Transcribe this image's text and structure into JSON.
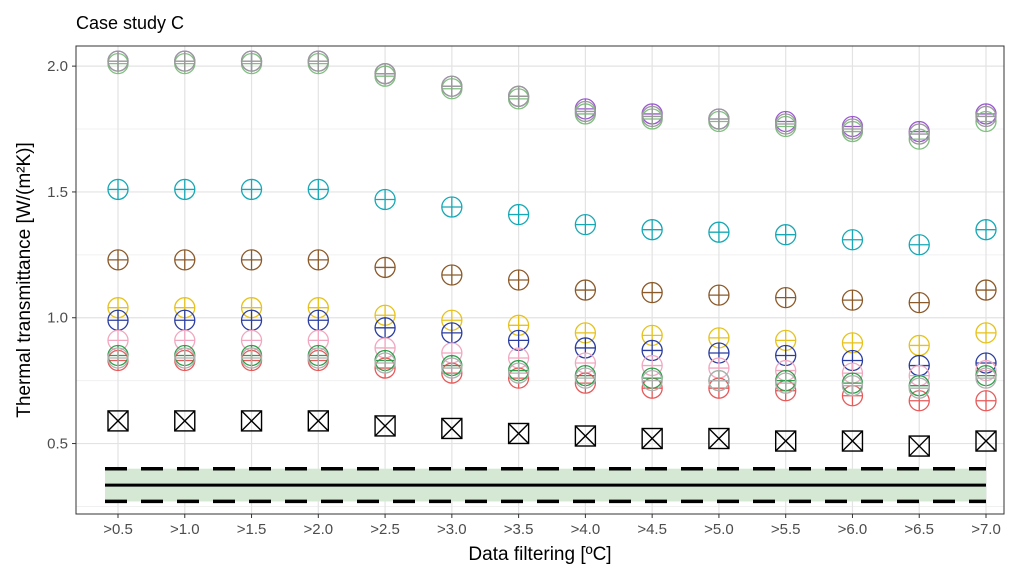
{
  "chart_data": {
    "type": "scatter",
    "title": "Case study C",
    "xlabel": "Data filtering [ºC]",
    "ylabel": "Thermal transmittance [W/(m²K)]",
    "categories": [
      ">0.5",
      ">1.0",
      ">1.5",
      ">2.0",
      ">2.5",
      ">3.0",
      ">3.5",
      ">4.0",
      ">4.5",
      ">5.0",
      ">5.5",
      ">6.0",
      ">6.5",
      ">7.0"
    ],
    "ylim": [
      0.22,
      2.08
    ],
    "yticks": [
      0.5,
      1.0,
      1.5,
      2.0
    ],
    "ytick_labels": [
      "0.5",
      "1.0",
      "1.5",
      "2.0"
    ],
    "grid": true,
    "legend": "none",
    "marker_style": "circle-plus",
    "series": [
      {
        "color": "#9b59d0",
        "values": [
          2.02,
          2.02,
          2.02,
          2.02,
          1.97,
          1.92,
          1.88,
          1.83,
          1.81,
          1.79,
          1.78,
          1.76,
          1.74,
          1.81
        ]
      },
      {
        "color": "#7fbf7f",
        "values": [
          2.01,
          2.01,
          2.01,
          2.01,
          1.96,
          1.91,
          1.87,
          1.81,
          1.79,
          1.78,
          1.76,
          1.74,
          1.71,
          1.78
        ]
      },
      {
        "color": "#9a9a9a",
        "values": [
          2.02,
          2.02,
          2.02,
          2.02,
          1.97,
          1.92,
          1.88,
          1.82,
          1.8,
          1.79,
          1.77,
          1.75,
          1.73,
          1.8
        ]
      },
      {
        "color": "#17a8b5",
        "values": [
          1.51,
          1.51,
          1.51,
          1.51,
          1.47,
          1.44,
          1.41,
          1.37,
          1.35,
          1.34,
          1.33,
          1.31,
          1.29,
          1.35
        ]
      },
      {
        "color": "#8b5a2b",
        "values": [
          1.23,
          1.23,
          1.23,
          1.23,
          1.2,
          1.17,
          1.15,
          1.11,
          1.1,
          1.09,
          1.08,
          1.07,
          1.06,
          1.11
        ]
      },
      {
        "color": "#e6c21a",
        "values": [
          1.04,
          1.04,
          1.04,
          1.04,
          1.01,
          0.99,
          0.97,
          0.94,
          0.93,
          0.92,
          0.91,
          0.9,
          0.89,
          0.94
        ]
      },
      {
        "color": "#2b3ea0",
        "values": [
          0.99,
          0.99,
          0.99,
          0.99,
          0.96,
          0.94,
          0.91,
          0.88,
          0.87,
          0.86,
          0.85,
          0.83,
          0.81,
          0.82
        ]
      },
      {
        "color": "#f0a8c0",
        "values": [
          0.91,
          0.91,
          0.91,
          0.91,
          0.88,
          0.86,
          0.84,
          0.82,
          0.81,
          0.8,
          0.79,
          0.78,
          0.77,
          0.79
        ]
      },
      {
        "color": "#e85a5a",
        "values": [
          0.83,
          0.83,
          0.83,
          0.83,
          0.8,
          0.78,
          0.76,
          0.74,
          0.72,
          0.72,
          0.71,
          0.69,
          0.67,
          0.67
        ]
      },
      {
        "color": "#2e9e4a",
        "values": [
          0.85,
          0.85,
          0.85,
          0.85,
          0.83,
          0.81,
          0.79,
          0.77,
          0.76,
          0.75,
          0.75,
          0.74,
          0.73,
          0.77
        ]
      },
      {
        "color": "#b0b0b0",
        "values": [
          0.84,
          0.84,
          0.84,
          0.84,
          0.82,
          0.8,
          0.78,
          0.76,
          0.75,
          0.75,
          0.74,
          0.73,
          0.72,
          0.76
        ]
      }
    ],
    "box_series": {
      "color": "#000000",
      "marker_style": "square-cross",
      "values": [
        0.59,
        0.59,
        0.59,
        0.59,
        0.57,
        0.56,
        0.54,
        0.53,
        0.52,
        0.52,
        0.51,
        0.51,
        0.49,
        0.51
      ]
    },
    "reference_band": {
      "center": 0.335,
      "lower": 0.27,
      "upper": 0.4,
      "fill_color": "#d4e8d4",
      "line_color": "#000000"
    }
  }
}
